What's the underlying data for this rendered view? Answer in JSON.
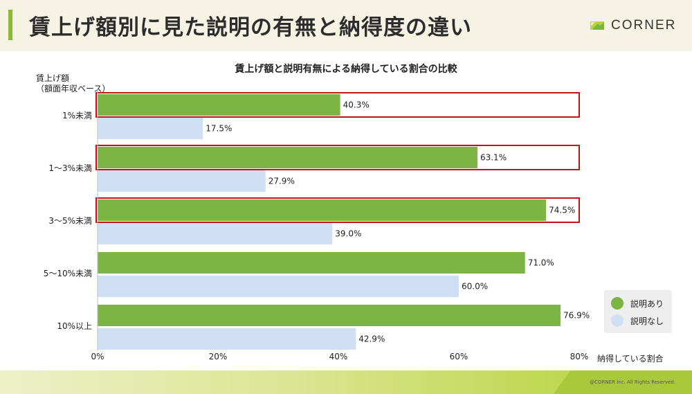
{
  "header": {
    "title": "賃上げ額別に見た説明の有無と納得度の違い",
    "logo_text": "CORNER"
  },
  "chart_data": {
    "type": "bar",
    "orientation": "horizontal",
    "title": "賃上げ額と説明有無による納得している割合の比較",
    "ylabel_lines": [
      "賃上げ額",
      "（額面年収ベース）"
    ],
    "xlabel": "納得している割合",
    "categories": [
      "1%未満",
      "1〜3%未満",
      "3〜5%未満",
      "5〜10%未満",
      "10%以上"
    ],
    "series": [
      {
        "name": "説明あり",
        "color": "#7db544",
        "values": [
          40.3,
          63.1,
          74.5,
          71.0,
          76.9
        ],
        "labels": [
          "40.3%",
          "63.1%",
          "74.5%",
          "71.0%",
          "76.9%"
        ]
      },
      {
        "name": "説明なし",
        "color": "#cfe0f4",
        "values": [
          17.5,
          27.9,
          39.0,
          60.0,
          42.9
        ],
        "labels": [
          "17.5%",
          "27.9%",
          "39.0%",
          "60.0%",
          "42.9%"
        ]
      }
    ],
    "highlighted_categories": [
      0,
      1,
      2
    ],
    "highlight_color": "#c0141a",
    "xlim": [
      0,
      80
    ],
    "xticks": [
      0,
      20,
      40,
      60,
      80
    ],
    "xtick_labels": [
      "0%",
      "20%",
      "40%",
      "60%",
      "80%"
    ],
    "legend_position": "bottom-right",
    "grid": false
  },
  "footer": {
    "copyright": "@CORNER Inc. All Rights Reserved."
  }
}
